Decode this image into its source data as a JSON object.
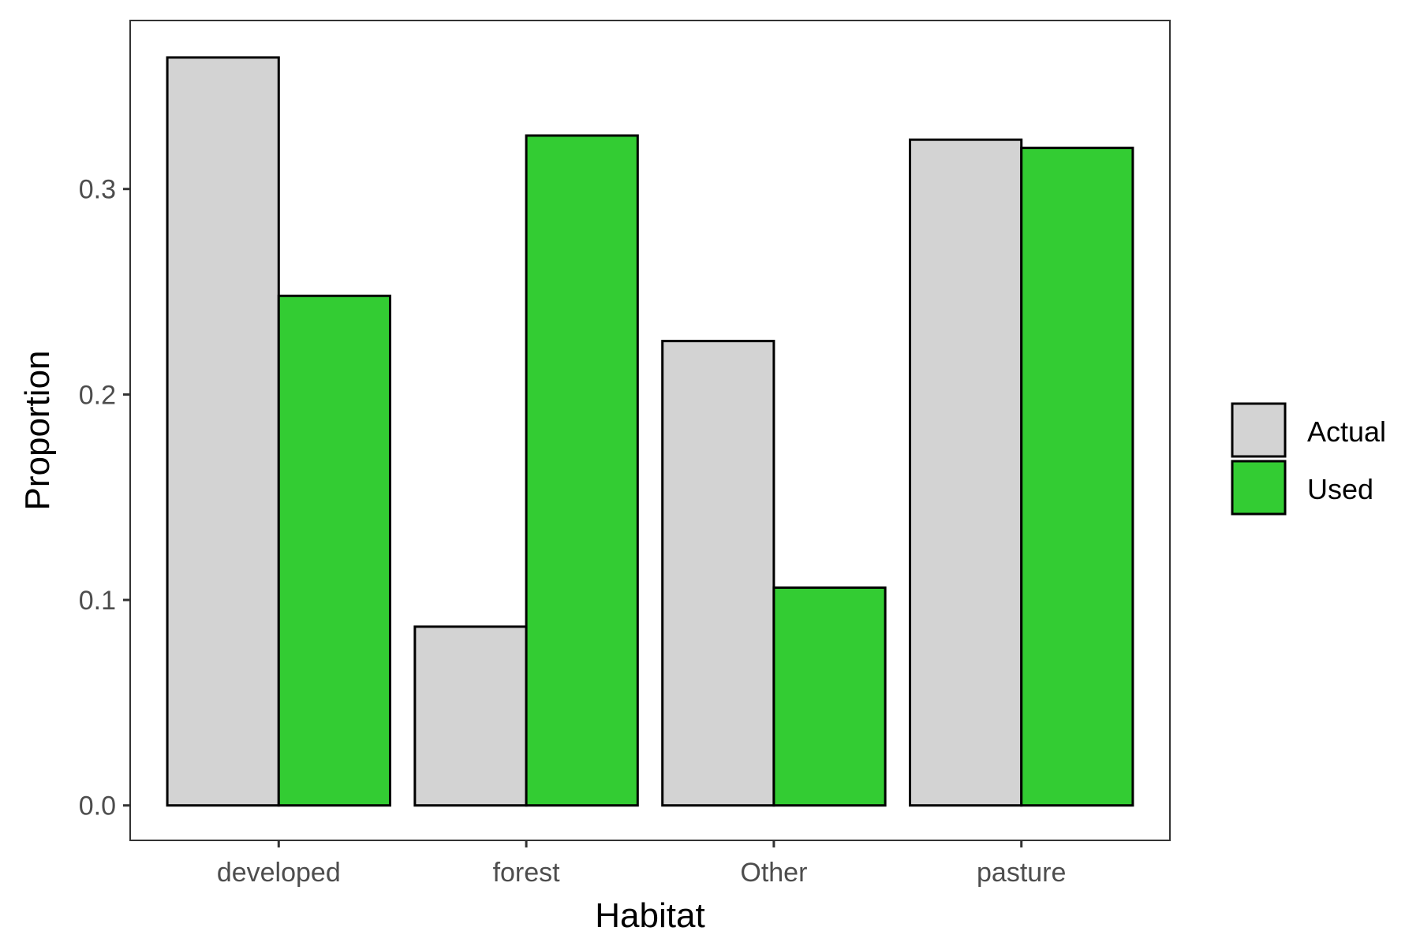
{
  "chart_data": {
    "type": "bar",
    "categories": [
      "developed",
      "forest",
      "Other",
      "pasture"
    ],
    "series": [
      {
        "name": "Actual",
        "values": [
          0.364,
          0.087,
          0.226,
          0.324
        ],
        "color": "#d3d3d3"
      },
      {
        "name": "Used",
        "values": [
          0.248,
          0.326,
          0.106,
          0.32
        ],
        "color": "#33cc33"
      }
    ],
    "xlabel": "Habitat",
    "ylabel": "Proportion",
    "ylim": [
      -0.017,
      0.382
    ],
    "yticks": [
      0.0,
      0.1,
      0.2,
      0.3
    ],
    "ytick_labels": [
      "0.0",
      "0.1",
      "0.2",
      "0.3"
    ],
    "legend": {
      "position": "right",
      "entries": [
        "Actual",
        "Used"
      ]
    },
    "grid": false
  }
}
